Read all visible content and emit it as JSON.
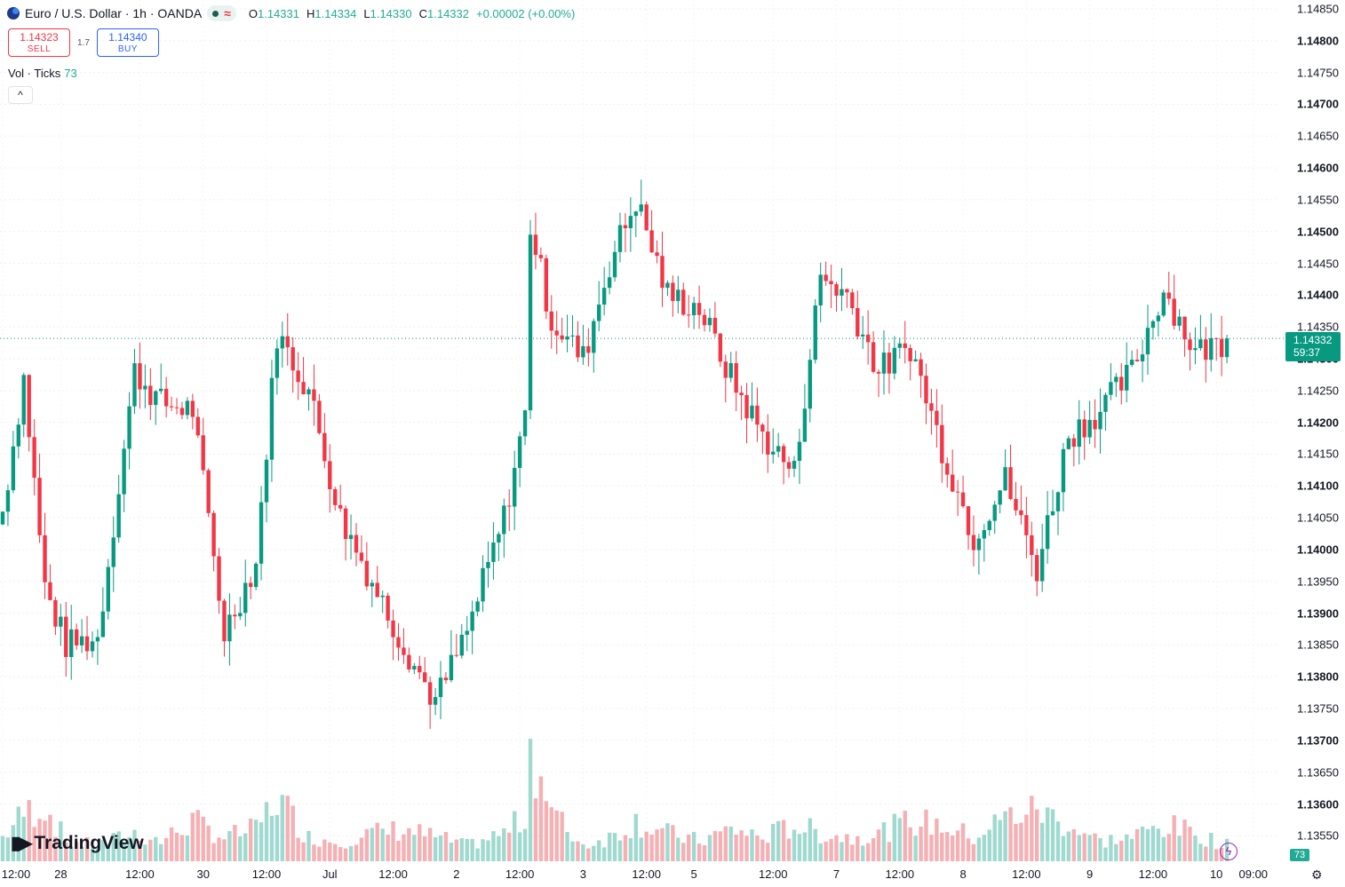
{
  "header": {
    "title": "Euro / U.S. Dollar · 1h · OANDA",
    "o_label": "O",
    "o": "1.14331",
    "h_label": "H",
    "h": "1.14334",
    "l_label": "L",
    "l": "1.14330",
    "c_label": "C",
    "c": "1.14332",
    "change": "+0.00002 (+0.00%)",
    "wave_icon": "≈"
  },
  "trade": {
    "sell_price": "1.14323",
    "sell_label": "SELL",
    "spread": "1.7",
    "buy_price": "1.14340",
    "buy_label": "BUY"
  },
  "volume_legend": {
    "label": "Vol · Ticks",
    "value": "73"
  },
  "collapse_label": "^",
  "price_badge": {
    "price": "1.14332",
    "countdown": "59:37"
  },
  "volume_badge": "73",
  "branding": "TradingView",
  "colors": {
    "up": "#089981",
    "down": "#f23645",
    "vol_up": "#9fd9cf",
    "vol_down": "#f5b0b4"
  },
  "chart_data": {
    "type": "candlestick",
    "symbol": "EURUSD",
    "interval": "1h",
    "y_ticks": [
      "1.14850",
      "1.14800",
      "1.14750",
      "1.14700",
      "1.14650",
      "1.14600",
      "1.14550",
      "1.14500",
      "1.14450",
      "1.14400",
      "1.14350",
      "1.14300",
      "1.14250",
      "1.14200",
      "1.14150",
      "1.14100",
      "1.14050",
      "1.14000",
      "1.13950",
      "1.13900",
      "1.13850",
      "1.13800",
      "1.13750",
      "1.13700",
      "1.13650",
      "1.13600",
      "1.13550"
    ],
    "ylim": [
      1.1353,
      1.1486
    ],
    "x_ticks": [
      "12:00",
      "28",
      "12:00",
      "30",
      "12:00",
      "Jul",
      "12:00",
      "2",
      "12:00",
      "3",
      "12:00",
      "5",
      "12:00",
      "7",
      "12:00",
      "8",
      "12:00",
      "9",
      "12:00",
      "10",
      "09:00"
    ],
    "price_line": 1.14332,
    "anchors": [
      {
        "x": 0,
        "p": 1.1406,
        "v": 30
      },
      {
        "x": 4,
        "p": 1.1427,
        "v": 60
      },
      {
        "x": 8,
        "p": 1.1394,
        "v": 70
      },
      {
        "x": 12,
        "p": 1.1385,
        "v": 25
      },
      {
        "x": 18,
        "p": 1.1386,
        "v": 20
      },
      {
        "x": 25,
        "p": 1.1428,
        "v": 35
      },
      {
        "x": 30,
        "p": 1.1423,
        "v": 25
      },
      {
        "x": 36,
        "p": 1.1422,
        "v": 50
      },
      {
        "x": 42,
        "p": 1.1387,
        "v": 30
      },
      {
        "x": 48,
        "p": 1.1398,
        "v": 40
      },
      {
        "x": 52,
        "p": 1.1434,
        "v": 80
      },
      {
        "x": 58,
        "p": 1.1425,
        "v": 30
      },
      {
        "x": 64,
        "p": 1.1405,
        "v": 25
      },
      {
        "x": 70,
        "p": 1.1395,
        "v": 35
      },
      {
        "x": 76,
        "p": 1.1385,
        "v": 40
      },
      {
        "x": 82,
        "p": 1.1376,
        "v": 30
      },
      {
        "x": 88,
        "p": 1.1387,
        "v": 20
      },
      {
        "x": 95,
        "p": 1.1405,
        "v": 35
      },
      {
        "x": 99,
        "p": 1.1421,
        "v": 55
      },
      {
        "x": 100,
        "p": 1.1451,
        "v": 150
      },
      {
        "x": 104,
        "p": 1.1436,
        "v": 60
      },
      {
        "x": 110,
        "p": 1.143,
        "v": 20
      },
      {
        "x": 115,
        "p": 1.1445,
        "v": 30
      },
      {
        "x": 120,
        "p": 1.1455,
        "v": 50
      },
      {
        "x": 126,
        "p": 1.144,
        "v": 35
      },
      {
        "x": 132,
        "p": 1.1438,
        "v": 25
      },
      {
        "x": 138,
        "p": 1.1427,
        "v": 40
      },
      {
        "x": 144,
        "p": 1.1418,
        "v": 30
      },
      {
        "x": 150,
        "p": 1.1412,
        "v": 45
      },
      {
        "x": 155,
        "p": 1.1443,
        "v": 35
      },
      {
        "x": 160,
        "p": 1.144,
        "v": 30
      },
      {
        "x": 166,
        "p": 1.1428,
        "v": 35
      },
      {
        "x": 172,
        "p": 1.1432,
        "v": 50
      },
      {
        "x": 178,
        "p": 1.1416,
        "v": 45
      },
      {
        "x": 184,
        "p": 1.1402,
        "v": 30
      },
      {
        "x": 190,
        "p": 1.1411,
        "v": 55
      },
      {
        "x": 196,
        "p": 1.1397,
        "v": 65
      },
      {
        "x": 202,
        "p": 1.1418,
        "v": 45
      },
      {
        "x": 208,
        "p": 1.1422,
        "v": 25
      },
      {
        "x": 214,
        "p": 1.1428,
        "v": 30
      },
      {
        "x": 220,
        "p": 1.1441,
        "v": 45
      },
      {
        "x": 226,
        "p": 1.1431,
        "v": 35
      },
      {
        "x": 232,
        "p": 1.1433,
        "v": 20
      }
    ]
  }
}
